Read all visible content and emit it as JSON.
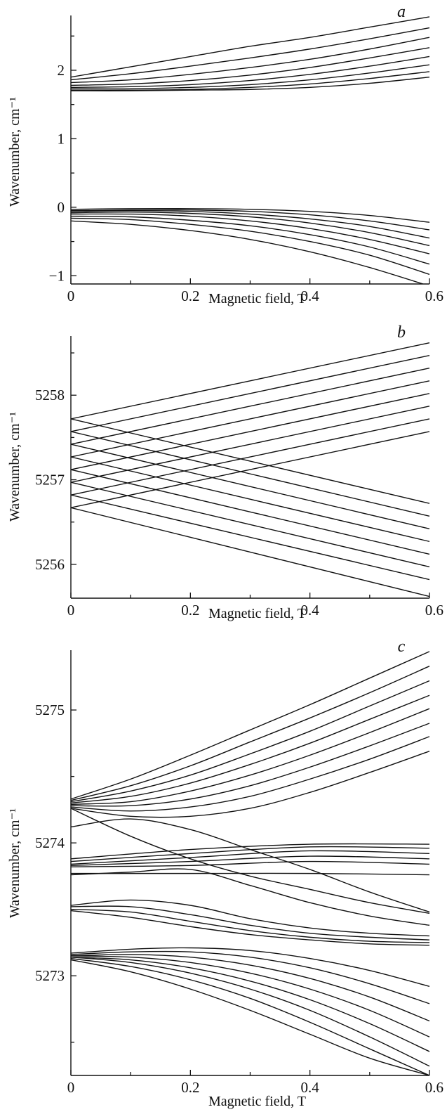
{
  "chart_data": [
    {
      "type": "line",
      "panel_label": "a",
      "xlabel": "Magnetic field, T",
      "ylabel": "Wavenumber, cm⁻¹",
      "xlim": [
        0,
        0.6
      ],
      "ylim": [
        -1.12,
        2.8
      ],
      "xticks": [
        0,
        0.2,
        0.4,
        0.6
      ],
      "xtick_labels": [
        "0",
        "0.2",
        "0.4",
        "0.6"
      ],
      "yticks": [
        -1,
        0,
        1,
        2
      ],
      "ytick_labels": [
        "−1",
        "0",
        "1",
        "2"
      ],
      "grid": false,
      "legend": "none",
      "series": [
        {
          "x": [
            0,
            0.1,
            0.2,
            0.3,
            0.4,
            0.5,
            0.6
          ],
          "y": [
            1.9,
            2.05,
            2.2,
            2.35,
            2.48,
            2.63,
            2.78
          ]
        },
        {
          "x": [
            0,
            0.1,
            0.2,
            0.3,
            0.4,
            0.5,
            0.6
          ],
          "y": [
            1.86,
            1.95,
            2.06,
            2.18,
            2.31,
            2.46,
            2.62
          ]
        },
        {
          "x": [
            0,
            0.1,
            0.2,
            0.3,
            0.4,
            0.5,
            0.6
          ],
          "y": [
            1.82,
            1.86,
            1.94,
            2.04,
            2.16,
            2.31,
            2.48
          ]
        },
        {
          "x": [
            0,
            0.1,
            0.2,
            0.3,
            0.4,
            0.5,
            0.6
          ],
          "y": [
            1.78,
            1.8,
            1.85,
            1.93,
            2.04,
            2.18,
            2.33
          ]
        },
        {
          "x": [
            0,
            0.1,
            0.2,
            0.3,
            0.4,
            0.5,
            0.6
          ],
          "y": [
            1.75,
            1.76,
            1.79,
            1.85,
            1.94,
            2.06,
            2.2
          ]
        },
        {
          "x": [
            0,
            0.1,
            0.2,
            0.3,
            0.4,
            0.5,
            0.6
          ],
          "y": [
            1.73,
            1.73,
            1.75,
            1.79,
            1.86,
            1.96,
            2.08
          ]
        },
        {
          "x": [
            0,
            0.1,
            0.2,
            0.3,
            0.4,
            0.5,
            0.6
          ],
          "y": [
            1.71,
            1.71,
            1.72,
            1.75,
            1.8,
            1.88,
            1.98
          ]
        },
        {
          "x": [
            0,
            0.1,
            0.2,
            0.3,
            0.4,
            0.5,
            0.6
          ],
          "y": [
            1.7,
            1.7,
            1.71,
            1.72,
            1.75,
            1.81,
            1.9
          ]
        },
        {
          "x": [
            0,
            0.1,
            0.2,
            0.3,
            0.4,
            0.5,
            0.6
          ],
          "y": [
            -0.03,
            -0.02,
            -0.02,
            -0.03,
            -0.06,
            -0.12,
            -0.22
          ]
        },
        {
          "x": [
            0,
            0.1,
            0.2,
            0.3,
            0.4,
            0.5,
            0.6
          ],
          "y": [
            -0.05,
            -0.04,
            -0.04,
            -0.06,
            -0.11,
            -0.2,
            -0.33
          ]
        },
        {
          "x": [
            0,
            0.1,
            0.2,
            0.3,
            0.4,
            0.5,
            0.6
          ],
          "y": [
            -0.06,
            -0.05,
            -0.06,
            -0.1,
            -0.17,
            -0.28,
            -0.45
          ]
        },
        {
          "x": [
            0,
            0.1,
            0.2,
            0.3,
            0.4,
            0.5,
            0.6
          ],
          "y": [
            -0.08,
            -0.07,
            -0.09,
            -0.14,
            -0.23,
            -0.37,
            -0.56
          ]
        },
        {
          "x": [
            0,
            0.1,
            0.2,
            0.3,
            0.4,
            0.5,
            0.6
          ],
          "y": [
            -0.1,
            -0.1,
            -0.13,
            -0.2,
            -0.31,
            -0.47,
            -0.68
          ]
        },
        {
          "x": [
            0,
            0.1,
            0.2,
            0.3,
            0.4,
            0.5,
            0.6
          ],
          "y": [
            -0.13,
            -0.14,
            -0.19,
            -0.27,
            -0.4,
            -0.58,
            -0.83
          ]
        },
        {
          "x": [
            0,
            0.1,
            0.2,
            0.3,
            0.4,
            0.5,
            0.6
          ],
          "y": [
            -0.16,
            -0.18,
            -0.25,
            -0.35,
            -0.5,
            -0.7,
            -0.98
          ]
        },
        {
          "x": [
            0,
            0.1,
            0.2,
            0.3,
            0.4,
            0.5,
            0.6
          ],
          "y": [
            -0.2,
            -0.25,
            -0.34,
            -0.47,
            -0.65,
            -0.88,
            -1.15
          ]
        }
      ]
    },
    {
      "type": "line",
      "panel_label": "b",
      "xlabel": "Magnetic field, T",
      "ylabel": "Wavenumber, cm⁻¹",
      "xlim": [
        0,
        0.6
      ],
      "ylim": [
        5255.6,
        5258.7
      ],
      "xticks": [
        0,
        0.2,
        0.4,
        0.6
      ],
      "xtick_labels": [
        "0",
        "0.2",
        "0.4",
        "0.6"
      ],
      "yticks": [
        5256,
        5257,
        5258
      ],
      "ytick_labels": [
        "5256",
        "5257",
        "5258"
      ],
      "grid": false,
      "legend": "none",
      "series": [
        {
          "x": [
            0,
            0.6
          ],
          "y": [
            5257.72,
            5258.62
          ]
        },
        {
          "x": [
            0,
            0.6
          ],
          "y": [
            5257.57,
            5258.47
          ]
        },
        {
          "x": [
            0,
            0.6
          ],
          "y": [
            5257.42,
            5258.32
          ]
        },
        {
          "x": [
            0,
            0.6
          ],
          "y": [
            5257.27,
            5258.17
          ]
        },
        {
          "x": [
            0,
            0.6
          ],
          "y": [
            5257.12,
            5258.02
          ]
        },
        {
          "x": [
            0,
            0.6
          ],
          "y": [
            5256.97,
            5257.87
          ]
        },
        {
          "x": [
            0,
            0.6
          ],
          "y": [
            5256.82,
            5257.72
          ]
        },
        {
          "x": [
            0,
            0.6
          ],
          "y": [
            5256.67,
            5257.57
          ]
        },
        {
          "x": [
            0,
            0.6
          ],
          "y": [
            5257.72,
            5256.72
          ]
        },
        {
          "x": [
            0,
            0.6
          ],
          "y": [
            5257.57,
            5256.57
          ]
        },
        {
          "x": [
            0,
            0.6
          ],
          "y": [
            5257.42,
            5256.42
          ]
        },
        {
          "x": [
            0,
            0.6
          ],
          "y": [
            5257.27,
            5256.27
          ]
        },
        {
          "x": [
            0,
            0.6
          ],
          "y": [
            5257.12,
            5256.12
          ]
        },
        {
          "x": [
            0,
            0.6
          ],
          "y": [
            5256.97,
            5255.97
          ]
        },
        {
          "x": [
            0,
            0.6
          ],
          "y": [
            5256.82,
            5255.82
          ]
        },
        {
          "x": [
            0,
            0.6
          ],
          "y": [
            5256.67,
            5255.62
          ]
        }
      ]
    },
    {
      "type": "line",
      "panel_label": "c",
      "xlabel": "Magnetic field, T",
      "ylabel": "Wavenumber, cm⁻¹",
      "xlim": [
        0,
        0.6
      ],
      "ylim": [
        5272.25,
        5275.45
      ],
      "xticks": [
        0,
        0.2,
        0.4,
        0.6
      ],
      "xtick_labels": [
        "0",
        "0.2",
        "0.4",
        "0.6"
      ],
      "yticks": [
        5273,
        5274,
        5275
      ],
      "ytick_labels": [
        "5273",
        "5274",
        "5275"
      ],
      "grid": false,
      "legend": "none",
      "series": [
        {
          "x": [
            0,
            0.1,
            0.2,
            0.3,
            0.4,
            0.5,
            0.6
          ],
          "y": [
            5274.33,
            5274.48,
            5274.66,
            5274.85,
            5275.04,
            5275.24,
            5275.44
          ]
        },
        {
          "x": [
            0,
            0.1,
            0.2,
            0.3,
            0.4,
            0.5,
            0.6
          ],
          "y": [
            5274.32,
            5274.43,
            5274.58,
            5274.76,
            5274.94,
            5275.13,
            5275.33
          ]
        },
        {
          "x": [
            0,
            0.1,
            0.2,
            0.3,
            0.4,
            0.5,
            0.6
          ],
          "y": [
            5274.31,
            5274.39,
            5274.51,
            5274.67,
            5274.84,
            5275.03,
            5275.22
          ]
        },
        {
          "x": [
            0,
            0.1,
            0.2,
            0.3,
            0.4,
            0.5,
            0.6
          ],
          "y": [
            5274.3,
            5274.35,
            5274.45,
            5274.59,
            5274.75,
            5274.93,
            5275.11
          ]
        },
        {
          "x": [
            0,
            0.1,
            0.2,
            0.3,
            0.4,
            0.5,
            0.6
          ],
          "y": [
            5274.29,
            5274.31,
            5274.39,
            5274.51,
            5274.66,
            5274.83,
            5275.01
          ]
        },
        {
          "x": [
            0,
            0.1,
            0.2,
            0.3,
            0.4,
            0.5,
            0.6
          ],
          "y": [
            5274.28,
            5274.28,
            5274.33,
            5274.43,
            5274.57,
            5274.73,
            5274.9
          ]
        },
        {
          "x": [
            0,
            0.1,
            0.2,
            0.3,
            0.4,
            0.5,
            0.6
          ],
          "y": [
            5274.27,
            5274.24,
            5274.27,
            5274.35,
            5274.48,
            5274.63,
            5274.8
          ]
        },
        {
          "x": [
            0,
            0.1,
            0.2,
            0.3,
            0.4,
            0.5,
            0.6
          ],
          "y": [
            5274.26,
            5274.2,
            5274.2,
            5274.26,
            5274.38,
            5274.53,
            5274.69
          ]
        },
        {
          "x": [
            0,
            0.1,
            0.2,
            0.3,
            0.4,
            0.5,
            0.6
          ],
          "y": [
            5274.12,
            5274.18,
            5274.1,
            5273.95,
            5273.8,
            5273.63,
            5273.48
          ]
        },
        {
          "x": [
            0,
            0.1,
            0.2,
            0.3,
            0.4,
            0.5,
            0.6
          ],
          "y": [
            5274.26,
            5274.05,
            5273.88,
            5273.75,
            5273.65,
            5273.55,
            5273.47
          ]
        },
        {
          "x": [
            0,
            0.2,
            0.4,
            0.6
          ],
          "y": [
            5273.88,
            5273.95,
            5273.99,
            5273.99
          ]
        },
        {
          "x": [
            0,
            0.2,
            0.4,
            0.6
          ],
          "y": [
            5273.86,
            5273.92,
            5273.97,
            5273.96
          ]
        },
        {
          "x": [
            0,
            0.2,
            0.4,
            0.6
          ],
          "y": [
            5273.84,
            5273.89,
            5273.94,
            5273.92
          ]
        },
        {
          "x": [
            0,
            0.2,
            0.4,
            0.6
          ],
          "y": [
            5273.83,
            5273.86,
            5273.9,
            5273.88
          ]
        },
        {
          "x": [
            0,
            0.2,
            0.4,
            0.6
          ],
          "y": [
            5273.82,
            5273.83,
            5273.86,
            5273.84
          ]
        },
        {
          "x": [
            0,
            0.2,
            0.4,
            0.6
          ],
          "y": [
            5273.77,
            5273.77,
            5273.77,
            5273.76
          ]
        },
        {
          "x": [
            0,
            0.1,
            0.2,
            0.3,
            0.4,
            0.5,
            0.6
          ],
          "y": [
            5273.76,
            5273.78,
            5273.8,
            5273.68,
            5273.55,
            5273.45,
            5273.38
          ]
        },
        {
          "x": [
            0,
            0.1,
            0.2,
            0.3,
            0.4,
            0.5,
            0.6
          ],
          "y": [
            5273.53,
            5273.57,
            5273.53,
            5273.43,
            5273.36,
            5273.32,
            5273.3
          ]
        },
        {
          "x": [
            0,
            0.1,
            0.2,
            0.3,
            0.4,
            0.5,
            0.6
          ],
          "y": [
            5273.52,
            5273.52,
            5273.46,
            5273.38,
            5273.32,
            5273.29,
            5273.27
          ]
        },
        {
          "x": [
            0,
            0.1,
            0.2,
            0.3,
            0.4,
            0.5,
            0.6
          ],
          "y": [
            5273.5,
            5273.48,
            5273.41,
            5273.34,
            5273.29,
            5273.26,
            5273.25
          ]
        },
        {
          "x": [
            0,
            0.1,
            0.2,
            0.3,
            0.4,
            0.5,
            0.6
          ],
          "y": [
            5273.49,
            5273.44,
            5273.37,
            5273.31,
            5273.27,
            5273.24,
            5273.23
          ]
        },
        {
          "x": [
            0,
            0.1,
            0.2,
            0.3,
            0.4,
            0.5,
            0.6
          ],
          "y": [
            5273.17,
            5273.2,
            5273.21,
            5273.19,
            5273.13,
            5273.04,
            5272.92
          ]
        },
        {
          "x": [
            0,
            0.1,
            0.2,
            0.3,
            0.4,
            0.5,
            0.6
          ],
          "y": [
            5273.16,
            5273.18,
            5273.18,
            5273.14,
            5273.06,
            5272.94,
            5272.79
          ]
        },
        {
          "x": [
            0,
            0.1,
            0.2,
            0.3,
            0.4,
            0.5,
            0.6
          ],
          "y": [
            5273.15,
            5273.16,
            5273.14,
            5273.08,
            5272.98,
            5272.84,
            5272.66
          ]
        },
        {
          "x": [
            0,
            0.1,
            0.2,
            0.3,
            0.4,
            0.5,
            0.6
          ],
          "y": [
            5273.15,
            5273.14,
            5273.1,
            5273.02,
            5272.9,
            5272.74,
            5272.54
          ]
        },
        {
          "x": [
            0,
            0.1,
            0.2,
            0.3,
            0.4,
            0.5,
            0.6
          ],
          "y": [
            5273.14,
            5273.12,
            5273.06,
            5272.96,
            5272.82,
            5272.64,
            5272.43
          ]
        },
        {
          "x": [
            0,
            0.1,
            0.2,
            0.3,
            0.4,
            0.5,
            0.6
          ],
          "y": [
            5273.14,
            5273.1,
            5273.02,
            5272.9,
            5272.74,
            5272.54,
            5272.32
          ]
        },
        {
          "x": [
            0,
            0.1,
            0.2,
            0.3,
            0.4,
            0.5,
            0.6
          ],
          "y": [
            5273.13,
            5273.07,
            5272.97,
            5272.83,
            5272.65,
            5272.45,
            5272.25
          ]
        },
        {
          "x": [
            0,
            0.1,
            0.2,
            0.3,
            0.4,
            0.5,
            0.6
          ],
          "y": [
            5273.12,
            5273.03,
            5272.9,
            5272.74,
            5272.56,
            5272.38,
            5272.25
          ]
        }
      ]
    }
  ]
}
